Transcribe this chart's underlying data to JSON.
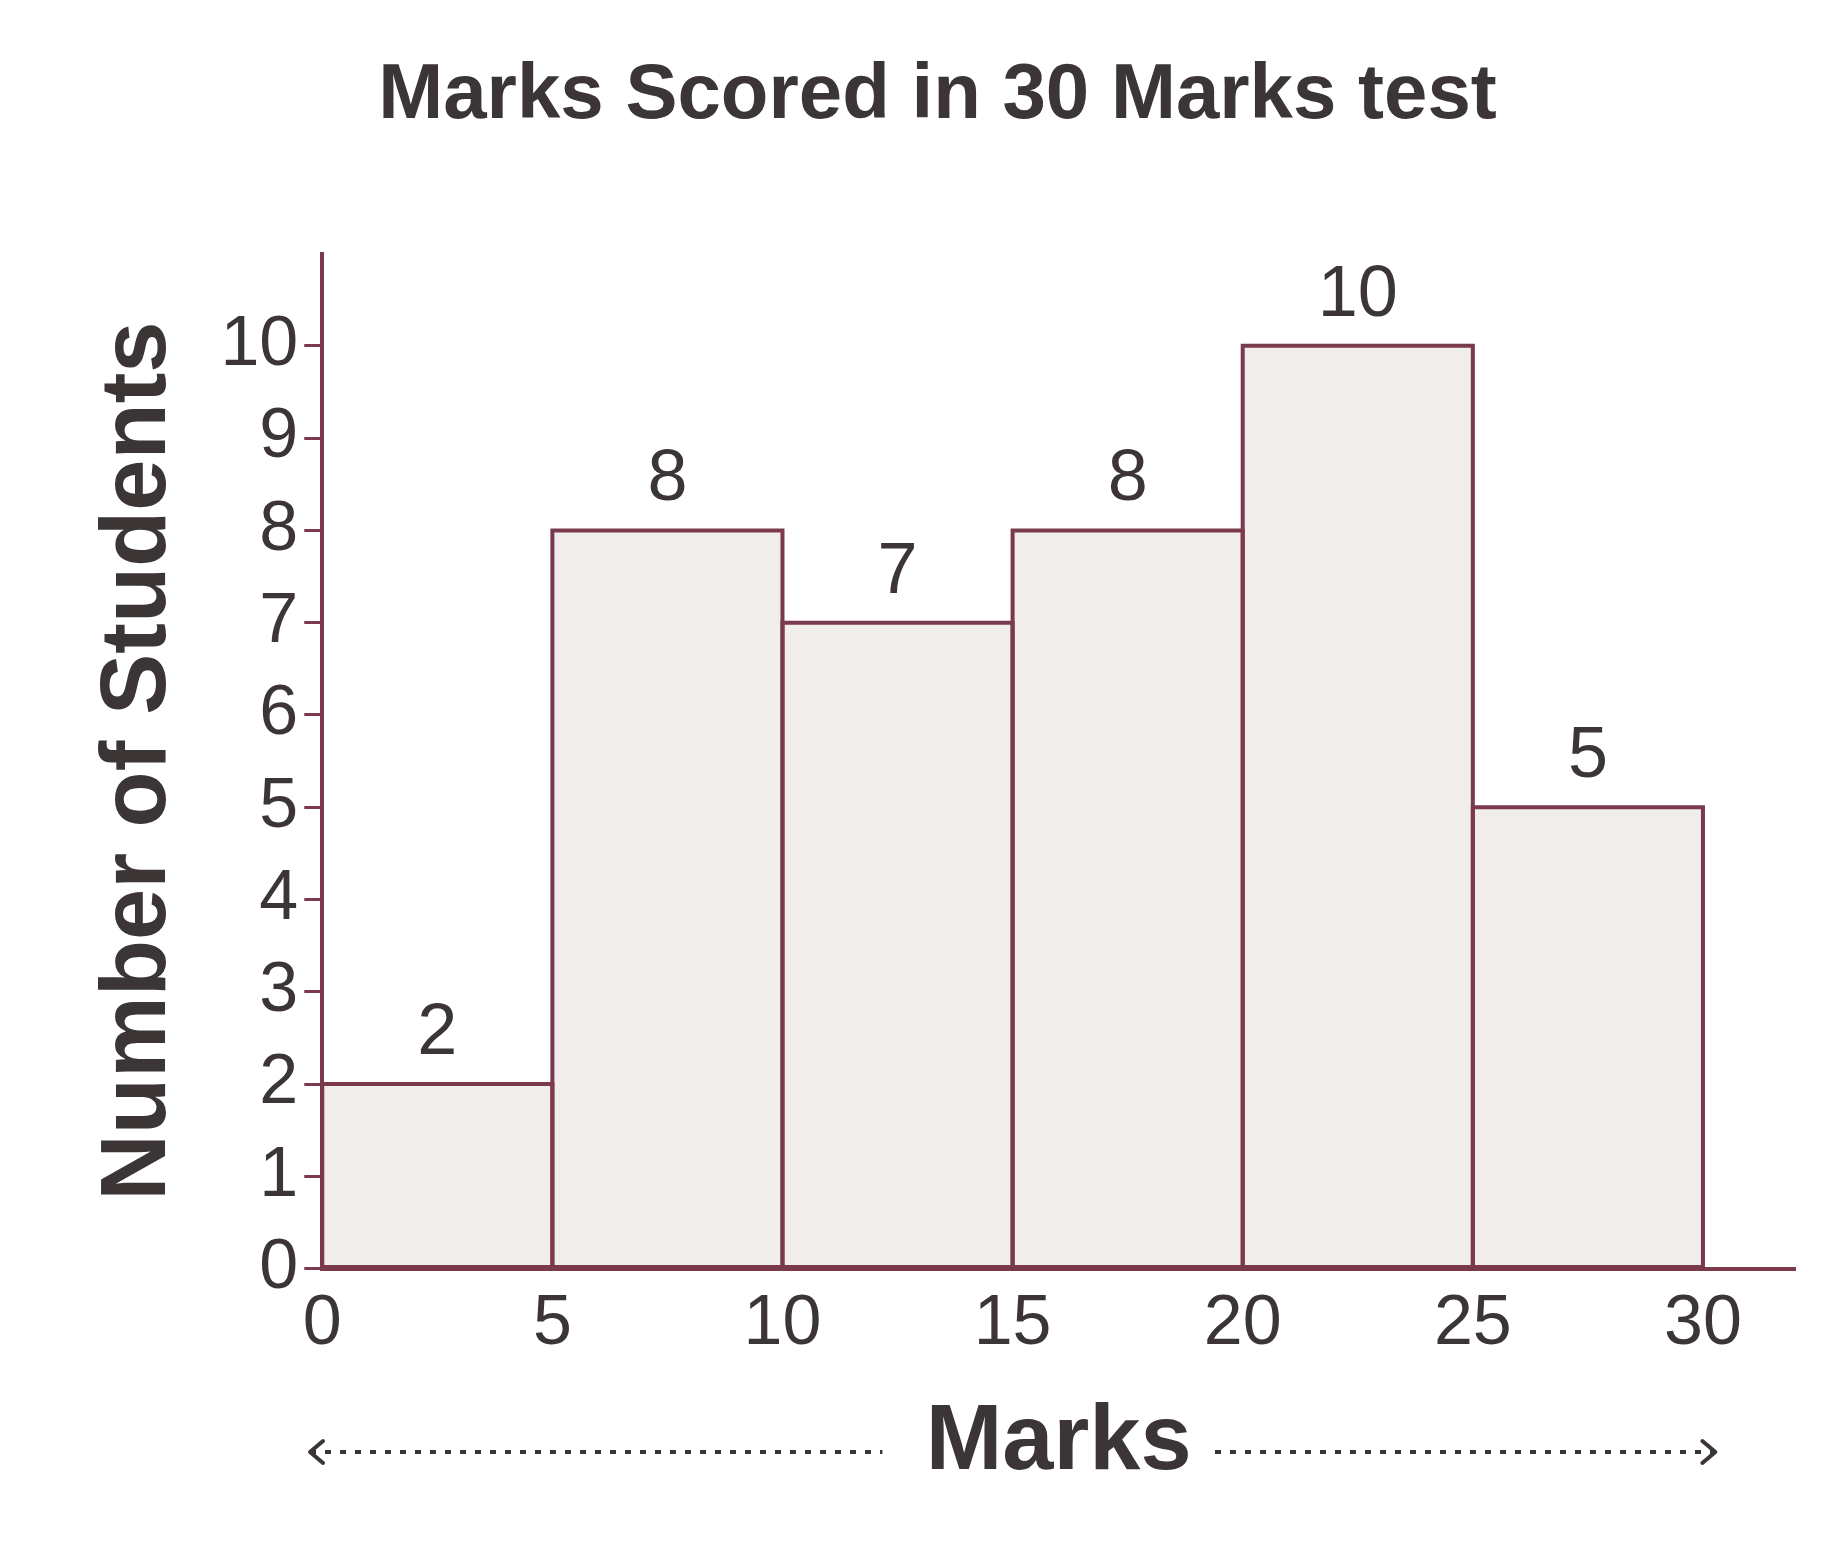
{
  "chart_data": {
    "type": "histogram",
    "title": "Marks Scored in 30 Marks test",
    "xlabel": "Marks",
    "ylabel": "Number of Students",
    "bins": [
      0,
      5,
      10,
      15,
      20,
      25,
      30
    ],
    "values": [
      2,
      8,
      7,
      8,
      10,
      5
    ],
    "color": "#f1eded",
    "xlim": [
      0,
      32
    ],
    "xticks": [
      0,
      5,
      10,
      15,
      20,
      25,
      30
    ],
    "ylim": [
      0,
      11
    ],
    "yticks": [
      0,
      1,
      2,
      3,
      4,
      5,
      6,
      7,
      8,
      9,
      10
    ],
    "grid": false,
    "legend": false,
    "data_labels": true
  }
}
